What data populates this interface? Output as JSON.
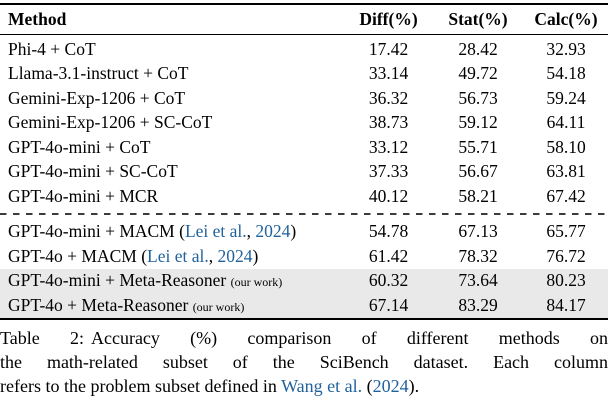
{
  "colors": {
    "citation_blue": "#20629c",
    "highlight_bg": "#e9e9e9",
    "text": "#000000"
  },
  "table": {
    "headers": [
      "Method",
      "Diff(%)",
      "Stat(%)",
      "Calc(%)"
    ],
    "rows": [
      {
        "method": "Phi-4 + CoT",
        "diff": "17.42",
        "stat": "28.42",
        "calc": "32.93",
        "highlight": false
      },
      {
        "method": "Llama-3.1-instruct + CoT",
        "diff": "33.14",
        "stat": "49.72",
        "calc": "54.18",
        "highlight": false
      },
      {
        "method": "Gemini-Exp-1206 + CoT",
        "diff": "36.32",
        "stat": "56.73",
        "calc": "59.24",
        "highlight": false
      },
      {
        "method": "Gemini-Exp-1206 + SC-CoT",
        "diff": "38.73",
        "stat": "59.12",
        "calc": "64.11",
        "highlight": false
      },
      {
        "method": "GPT-4o-mini + CoT",
        "diff": "33.12",
        "stat": "55.71",
        "calc": "58.10",
        "highlight": false
      },
      {
        "method": "GPT-4o-mini + SC-CoT",
        "diff": "37.33",
        "stat": "56.67",
        "calc": "63.81",
        "highlight": false
      },
      {
        "method": "GPT-4o-mini + MCR",
        "diff": "40.12",
        "stat": "58.21",
        "calc": "67.42",
        "highlight": false
      },
      {
        "method_prefix": "GPT-4o-mini + MACM (",
        "cite_authors": "Lei et al.",
        "cite_sep": ", ",
        "cite_year": "2024",
        "method_suffix": ")",
        "diff": "54.78",
        "stat": "67.13",
        "calc": "65.77",
        "highlight": false
      },
      {
        "method_prefix": "GPT-4o + MACM (",
        "cite_authors": "Lei et al.",
        "cite_sep": ", ",
        "cite_year": "2024",
        "method_suffix": ")",
        "diff": "61.42",
        "stat": "78.32",
        "calc": "76.72",
        "highlight": false
      },
      {
        "method": "GPT-4o-mini + Meta-Reasoner",
        "ourwork": "(our work)",
        "diff": "60.32",
        "stat": "73.64",
        "calc": "80.23",
        "highlight": true
      },
      {
        "method": "GPT-4o + Meta-Reasoner",
        "ourwork": "(our work)",
        "diff": "67.14",
        "stat": "83.29",
        "calc": "84.17",
        "highlight": true
      }
    ]
  },
  "caption": {
    "label": "Table 2:",
    "line1_rest": "Accuracy (%) comparison of different methods on",
    "line2": "the math-related subset of the SciBench dataset. Each column",
    "line3_prefix": "refers to the problem subset defined in ",
    "cite_authors": "Wang et al.",
    "cite_pre_year": " (",
    "cite_year": "2024",
    "cite_close": ")."
  }
}
